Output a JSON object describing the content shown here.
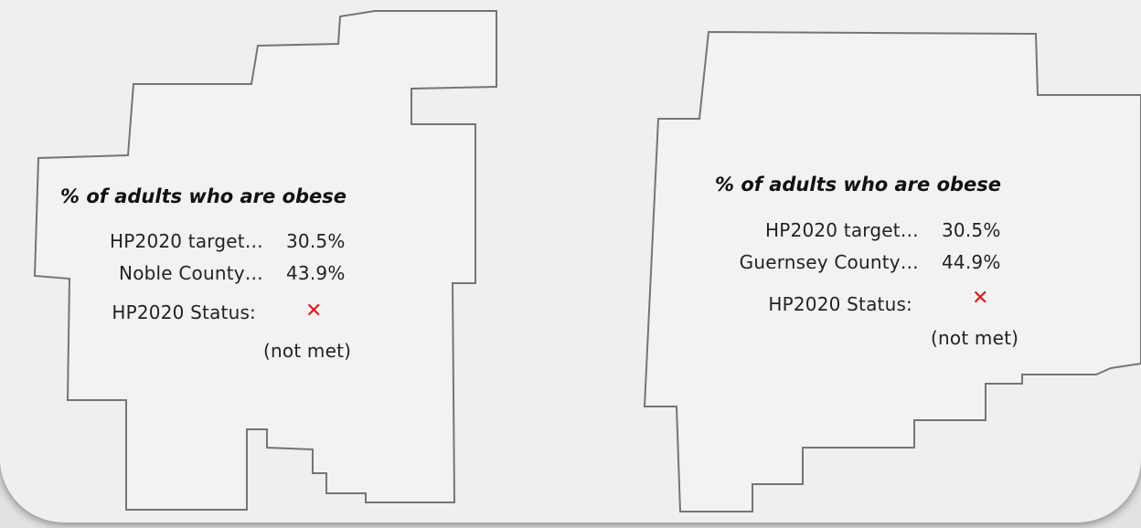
{
  "noble": {
    "title": "% of adults who are obese",
    "target_label": "HP2020 target…",
    "target_value": "30.5%",
    "county_label": "Noble County…",
    "county_value": "43.9%",
    "status_label": "HP2020 Status:",
    "status_note": "(not met)"
  },
  "guernsey": {
    "title": "% of adults who are obese",
    "target_label": "HP2020 target…",
    "target_value": "30.5%",
    "county_label": "Guernsey County…",
    "county_value": "44.9%",
    "status_label": "HP2020 Status:",
    "status_note": "(not met)"
  },
  "status_icon": "x-mark-icon",
  "colors": {
    "status_not_met": "#e8141b",
    "outline": "#757575",
    "fill": "#f2f2f2"
  }
}
